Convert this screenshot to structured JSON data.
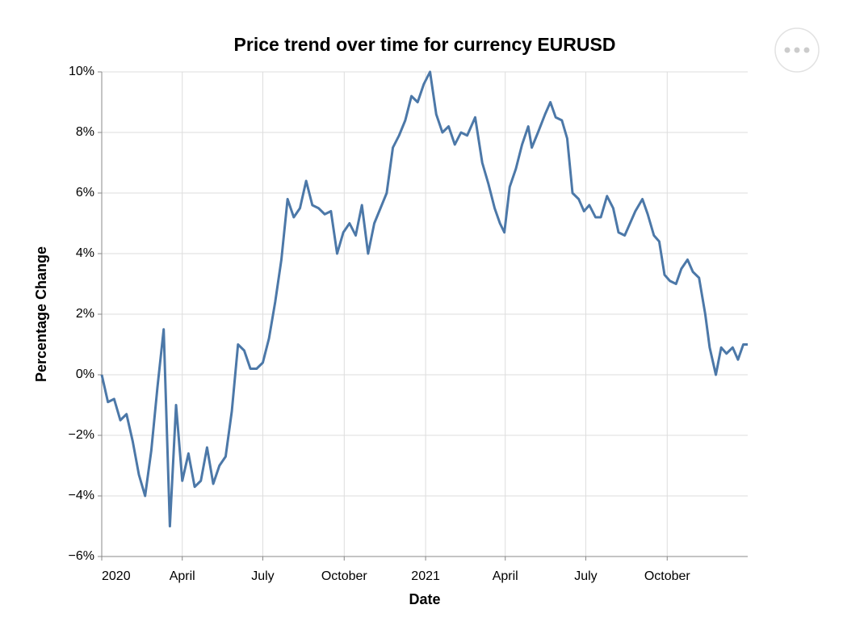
{
  "chart_data": {
    "type": "line",
    "title": "Price trend over time for currency EURUSD",
    "x_label": "Date",
    "y_label": "Percentage Change",
    "color": "#4c78a8",
    "grid": true,
    "x": [
      "2020-01-01",
      "2020-01-08",
      "2020-01-15",
      "2020-01-22",
      "2020-01-29",
      "2020-02-05",
      "2020-02-12",
      "2020-02-19",
      "2020-02-26",
      "2020-03-04",
      "2020-03-11",
      "2020-03-18",
      "2020-03-25",
      "2020-04-01",
      "2020-04-08",
      "2020-04-15",
      "2020-04-22",
      "2020-04-29",
      "2020-05-06",
      "2020-05-13",
      "2020-05-20",
      "2020-05-27",
      "2020-06-03",
      "2020-06-10",
      "2020-06-17",
      "2020-06-24",
      "2020-07-01",
      "2020-07-08",
      "2020-07-15",
      "2020-07-22",
      "2020-07-29",
      "2020-08-05",
      "2020-08-12",
      "2020-08-19",
      "2020-08-26",
      "2020-09-02",
      "2020-09-09",
      "2020-09-16",
      "2020-09-23",
      "2020-09-30",
      "2020-10-07",
      "2020-10-14",
      "2020-10-21",
      "2020-10-28",
      "2020-11-04",
      "2020-11-11",
      "2020-11-18",
      "2020-11-25",
      "2020-12-02",
      "2020-12-09",
      "2020-12-16",
      "2020-12-23",
      "2020-12-30",
      "2021-01-06",
      "2021-01-13",
      "2021-01-20",
      "2021-01-27",
      "2021-02-03",
      "2021-02-10",
      "2021-02-17",
      "2021-02-26",
      "2021-03-06",
      "2021-03-13",
      "2021-03-20",
      "2021-03-26",
      "2021-03-31",
      "2021-04-06",
      "2021-04-13",
      "2021-04-20",
      "2021-04-27",
      "2021-05-01",
      "2021-05-08",
      "2021-05-16",
      "2021-05-22",
      "2021-05-28",
      "2021-06-04",
      "2021-06-10",
      "2021-06-16",
      "2021-06-23",
      "2021-06-29",
      "2021-07-05",
      "2021-07-12",
      "2021-07-18",
      "2021-07-25",
      "2021-08-01",
      "2021-08-07",
      "2021-08-14",
      "2021-08-20",
      "2021-08-26",
      "2021-09-03",
      "2021-09-09",
      "2021-09-16",
      "2021-09-22",
      "2021-09-28",
      "2021-10-04",
      "2021-10-11",
      "2021-10-17",
      "2021-10-24",
      "2021-10-30",
      "2021-11-06",
      "2021-11-13",
      "2021-11-18",
      "2021-11-25",
      "2021-12-01",
      "2021-12-07",
      "2021-12-14",
      "2021-12-20",
      "2021-12-26",
      "2021-12-31"
    ],
    "values": [
      0.0,
      -0.9,
      -0.8,
      -1.5,
      -1.3,
      -2.2,
      -3.3,
      -4.0,
      -2.5,
      -0.4,
      1.5,
      -5.0,
      -1.0,
      -3.5,
      -2.6,
      -3.7,
      -3.5,
      -2.4,
      -3.6,
      -3.0,
      -2.7,
      -1.2,
      1.0,
      0.8,
      0.2,
      0.2,
      0.4,
      1.2,
      2.4,
      3.8,
      5.8,
      5.2,
      5.5,
      6.4,
      5.6,
      5.5,
      5.3,
      5.4,
      4.0,
      4.7,
      5.0,
      4.6,
      5.6,
      4.0,
      5.0,
      5.5,
      6.0,
      7.5,
      7.9,
      8.4,
      9.2,
      9.0,
      9.6,
      10.0,
      8.6,
      8.0,
      8.2,
      7.6,
      8.0,
      7.9,
      8.5,
      7.0,
      6.3,
      5.5,
      5.0,
      4.7,
      6.2,
      6.8,
      7.6,
      8.2,
      7.5,
      8.0,
      8.6,
      9.0,
      8.5,
      8.4,
      7.8,
      6.0,
      5.8,
      5.4,
      5.6,
      5.2,
      5.2,
      5.9,
      5.5,
      4.7,
      4.6,
      5.0,
      5.4,
      5.8,
      5.3,
      4.6,
      4.4,
      3.3,
      3.1,
      3.0,
      3.5,
      3.8,
      3.4,
      3.2,
      2.0,
      0.9,
      0.0,
      0.9,
      0.7,
      0.9,
      0.5,
      1.0,
      1.0
    ],
    "xlim": [
      "2020-01-01",
      "2021-12-31"
    ],
    "xticks": [
      {
        "value": "2020-01-01",
        "label": "2020"
      },
      {
        "value": "2020-04-01",
        "label": "April"
      },
      {
        "value": "2020-07-01",
        "label": "July"
      },
      {
        "value": "2020-10-01",
        "label": "October"
      },
      {
        "value": "2021-01-01",
        "label": "2021"
      },
      {
        "value": "2021-04-01",
        "label": "April"
      },
      {
        "value": "2021-07-01",
        "label": "July"
      },
      {
        "value": "2021-10-01",
        "label": "October"
      }
    ],
    "ylim": [
      -6,
      10
    ],
    "yticks": [
      {
        "value": -6,
        "label": "−6%"
      },
      {
        "value": -4,
        "label": "−4%"
      },
      {
        "value": -2,
        "label": "−2%"
      },
      {
        "value": 0,
        "label": "0%"
      },
      {
        "value": 2,
        "label": "2%"
      },
      {
        "value": 4,
        "label": "4%"
      },
      {
        "value": 6,
        "label": "6%"
      },
      {
        "value": 8,
        "label": "8%"
      },
      {
        "value": 10,
        "label": "10%"
      }
    ]
  }
}
